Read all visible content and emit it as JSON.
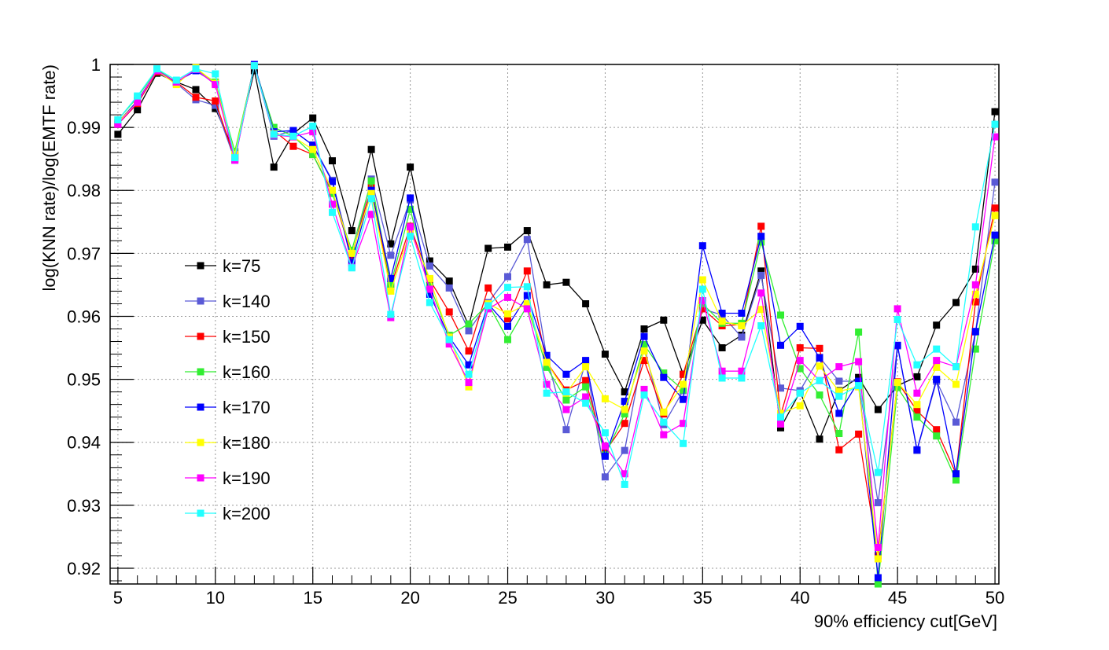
{
  "chart_data": {
    "type": "line",
    "title": "",
    "xlabel": "90% efficiency cut[GeV]",
    "ylabel": "log(KNN rate)/log(EMTF rate)",
    "xlim": [
      4.6,
      50.2
    ],
    "ylim": [
      0.9175,
      1.0
    ],
    "x_ticks": [
      5,
      10,
      15,
      20,
      25,
      30,
      35,
      40,
      45,
      50
    ],
    "y_ticks": [
      0.92,
      0.93,
      0.94,
      0.95,
      0.96,
      0.97,
      0.98,
      0.99,
      1
    ],
    "y_tick_labels": [
      "0.92",
      "0.93",
      "0.94",
      "0.95",
      "0.96",
      "0.97",
      "0.98",
      "0.99",
      "1"
    ],
    "grid": true,
    "marker": "square",
    "legend_position": "left-middle",
    "x": [
      5,
      6,
      7,
      8,
      9,
      10,
      11,
      12,
      13,
      14,
      15,
      16,
      17,
      18,
      19,
      20,
      21,
      22,
      23,
      24,
      25,
      26,
      27,
      28,
      29,
      30,
      31,
      32,
      33,
      34,
      35,
      36,
      37,
      38,
      39,
      40,
      41,
      42,
      43,
      44,
      45,
      46,
      47,
      48,
      49,
      50
    ],
    "series": [
      {
        "name": "k=75",
        "color": "#000000",
        "values": [
          0.9889,
          0.9928,
          0.9986,
          0.9972,
          0.996,
          0.993,
          0.986,
          0.999,
          0.9837,
          0.989,
          0.9915,
          0.9847,
          0.9736,
          0.9865,
          0.9715,
          0.9837,
          0.9688,
          0.9656,
          0.9585,
          0.9708,
          0.971,
          0.9736,
          0.965,
          0.9654,
          0.962,
          0.954,
          0.948,
          0.958,
          0.9594,
          0.9508,
          0.9594,
          0.955,
          0.957,
          0.9672,
          0.9423,
          0.948,
          0.9405,
          0.9482,
          0.9503,
          0.9452,
          0.949,
          0.9504,
          0.9586,
          0.9622,
          0.9675,
          0.9925
        ]
      },
      {
        "name": "k=140",
        "color": "#5a5ad6",
        "values": [
          0.9905,
          0.9938,
          0.9988,
          0.997,
          0.9944,
          0.9935,
          0.9848,
          0.9998,
          0.9886,
          0.9895,
          0.9872,
          0.9816,
          0.9693,
          0.9818,
          0.9697,
          0.9785,
          0.968,
          0.9645,
          0.9577,
          0.9622,
          0.9663,
          0.9722,
          0.9535,
          0.942,
          0.9528,
          0.9345,
          0.9387,
          0.9552,
          0.9428,
          0.9482,
          0.9612,
          0.9602,
          0.9567,
          0.9665,
          0.9486,
          0.9482,
          0.9535,
          0.9497,
          0.9497,
          0.9304,
          0.9553,
          0.9387,
          0.9497,
          0.9432,
          0.9575,
          0.9813
        ]
      },
      {
        "name": "k=150",
        "color": "#ff0000",
        "values": [
          0.9905,
          0.9938,
          0.9988,
          0.9972,
          0.9948,
          0.9942,
          0.985,
          0.9998,
          0.9895,
          0.987,
          0.9857,
          0.9797,
          0.9697,
          0.9805,
          0.9647,
          0.9743,
          0.9658,
          0.9607,
          0.9545,
          0.9645,
          0.9596,
          0.9672,
          0.9527,
          0.9483,
          0.9498,
          0.9385,
          0.943,
          0.953,
          0.9445,
          0.9508,
          0.9612,
          0.9585,
          0.9587,
          0.9743,
          0.9443,
          0.955,
          0.9549,
          0.9388,
          0.9413,
          0.922,
          0.9496,
          0.945,
          0.942,
          0.935,
          0.9623,
          0.9772
        ]
      },
      {
        "name": "k=160",
        "color": "#33ee33",
        "values": [
          0.9912,
          0.9948,
          0.9992,
          0.9972,
          0.9992,
          0.9972,
          0.9862,
          0.9998,
          0.99,
          0.9886,
          0.9857,
          0.9795,
          0.9705,
          0.9815,
          0.965,
          0.977,
          0.9648,
          0.957,
          0.9588,
          0.962,
          0.9563,
          0.9617,
          0.9519,
          0.9467,
          0.9488,
          0.938,
          0.9445,
          0.9555,
          0.951,
          0.9483,
          0.962,
          0.9589,
          0.9589,
          0.9718,
          0.9602,
          0.9517,
          0.9475,
          0.9414,
          0.9575,
          0.9175,
          0.9487,
          0.944,
          0.941,
          0.934,
          0.9548,
          0.972
        ]
      },
      {
        "name": "k=170",
        "color": "#0000ff",
        "values": [
          0.9908,
          0.9942,
          0.999,
          0.9972,
          0.999,
          0.997,
          0.9855,
          1.0,
          0.9893,
          0.9895,
          0.9872,
          0.9814,
          0.9685,
          0.98,
          0.966,
          0.9788,
          0.9635,
          0.9567,
          0.9523,
          0.962,
          0.9584,
          0.9633,
          0.9538,
          0.9508,
          0.953,
          0.9378,
          0.9465,
          0.9568,
          0.9503,
          0.9468,
          0.9712,
          0.9605,
          0.9605,
          0.9727,
          0.9554,
          0.9584,
          0.9534,
          0.9446,
          0.9497,
          0.9185,
          0.9554,
          0.9388,
          0.95,
          0.935,
          0.9576,
          0.9729
        ]
      },
      {
        "name": "k=180",
        "color": "#ffff00",
        "values": [
          0.9908,
          0.994,
          0.999,
          0.9968,
          0.9995,
          0.997,
          0.9857,
          0.9998,
          0.989,
          0.9885,
          0.9865,
          0.98,
          0.97,
          0.9795,
          0.964,
          0.9735,
          0.966,
          0.9567,
          0.9488,
          0.962,
          0.9604,
          0.962,
          0.9527,
          0.9478,
          0.952,
          0.9469,
          0.9452,
          0.9545,
          0.9448,
          0.9492,
          0.9658,
          0.9592,
          0.9585,
          0.9611,
          0.9446,
          0.9458,
          0.9521,
          0.9481,
          0.9488,
          0.9215,
          0.9495,
          0.946,
          0.9519,
          0.9492,
          0.9635,
          0.976
        ]
      },
      {
        "name": "k=190",
        "color": "#ff00ff",
        "values": [
          0.9905,
          0.994,
          0.999,
          0.9972,
          0.9992,
          0.9968,
          0.9848,
          0.9998,
          0.9888,
          0.9885,
          0.9893,
          0.9778,
          0.9678,
          0.9762,
          0.9598,
          0.9742,
          0.9643,
          0.9556,
          0.9495,
          0.9612,
          0.963,
          0.9612,
          0.9492,
          0.9452,
          0.9472,
          0.9394,
          0.935,
          0.9484,
          0.9412,
          0.943,
          0.9625,
          0.9513,
          0.9513,
          0.9637,
          0.9429,
          0.953,
          0.9498,
          0.952,
          0.9528,
          0.9233,
          0.9612,
          0.9478,
          0.953,
          0.952,
          0.965,
          0.9885
        ]
      },
      {
        "name": "k=200",
        "color": "#22ffff",
        "values": [
          0.9912,
          0.995,
          0.9993,
          0.9975,
          0.9993,
          0.9985,
          0.9852,
          0.9998,
          0.9889,
          0.9886,
          0.9902,
          0.9765,
          0.9677,
          0.9787,
          0.9603,
          0.9727,
          0.9622,
          0.9563,
          0.9508,
          0.9617,
          0.9646,
          0.9647,
          0.9478,
          0.948,
          0.9462,
          0.9415,
          0.9333,
          0.9475,
          0.9432,
          0.9398,
          0.9643,
          0.9502,
          0.9502,
          0.9585,
          0.944,
          0.9478,
          0.9498,
          0.9473,
          0.949,
          0.9352,
          0.9595,
          0.9523,
          0.9548,
          0.952,
          0.9742,
          0.9905
        ]
      }
    ]
  }
}
